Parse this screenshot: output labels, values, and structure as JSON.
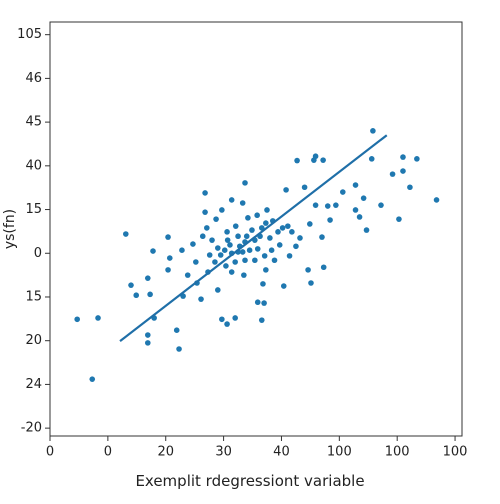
{
  "chart_data": {
    "type": "scatter",
    "x_label": "Exemplit rdegressiont variable",
    "y_label": "ys(fn)",
    "color": "#1f78b0",
    "line_color": "#1f6fa8",
    "xlim": [
      0,
      7.12
    ],
    "ylim": [
      -0.18,
      9.29
    ],
    "xticks": [
      {
        "value": 0,
        "label": "0"
      },
      {
        "value": 1,
        "label": "0"
      },
      {
        "value": 2,
        "label": "20"
      },
      {
        "value": 3,
        "label": "30"
      },
      {
        "value": 4,
        "label": "40"
      },
      {
        "value": 5,
        "label": "100"
      },
      {
        "value": 6,
        "label": "100"
      },
      {
        "value": 7,
        "label": "100"
      }
    ],
    "yticks": [
      {
        "value": 0,
        "label": "-20"
      },
      {
        "value": 1,
        "label": "24"
      },
      {
        "value": 2,
        "label": "20"
      },
      {
        "value": 3,
        "label": "15"
      },
      {
        "value": 4,
        "label": "0"
      },
      {
        "value": 5,
        "label": "15"
      },
      {
        "value": 6,
        "label": "40"
      },
      {
        "value": 7,
        "label": "45"
      },
      {
        "value": 8,
        "label": "46"
      },
      {
        "value": 9,
        "label": "105"
      }
    ],
    "x": [
      0.47,
      0.83,
      0.73,
      1.31,
      1.4,
      1.49,
      1.73,
      1.69,
      1.78,
      1.69,
      1.69,
      1.8,
      2.04,
      2.19,
      2.23,
      2.68,
      3.06,
      3.37,
      3.66,
      4.27,
      4.56,
      5.56,
      4.72,
      5.28,
      5.42,
      5.06,
      5.28,
      5.35,
      4.94,
      4.8,
      4.84,
      4.7,
      4.49,
      4.59,
      4.32,
      4.46,
      4.73,
      4.51,
      4.04,
      5.47,
      5.72,
      5.92,
      6.1,
      6.34,
      6.22,
      6.03,
      6.68,
      6.1,
      5.58,
      4.59,
      4.08,
      4.4,
      2.97,
      3.2,
      3.59,
      3.7,
      2.61,
      2.54,
      2.3,
      2.38,
      2.52,
      2.04,
      2.07,
      2.28,
      2.47,
      2.64,
      2.71,
      2.87,
      2.97,
      2.68,
      3.14,
      3.33,
      3.42,
      3.58,
      3.75,
      3.85,
      3.73,
      3.49,
      3.25,
      3.07,
      3.02,
      3.14,
      3.28,
      3.37,
      3.45,
      3.54,
      3.63,
      3.8,
      3.94,
      4.02,
      4.11,
      4.18,
      3.97,
      3.83,
      3.71,
      3.54,
      3.37,
      3.2,
      3.04,
      2.85,
      2.76,
      2.9,
      2.8,
      3.14,
      3.35,
      3.73,
      3.88,
      4.14,
      4.25,
      3.68,
      2.9,
      2.73,
      3.06,
      3.21,
      3.66,
      3.4,
      3.25,
      3.11,
      2.95,
      3.59,
      3.33
    ],
    "y": [
      2.49,
      2.52,
      1.12,
      4.44,
      3.27,
      3.04,
      3.06,
      3.43,
      4.05,
      2.13,
      1.95,
      2.52,
      4.37,
      2.24,
      1.81,
      5.38,
      2.38,
      5.61,
      2.47,
      6.12,
      6.13,
      6.16,
      6.13,
      5.56,
      5.26,
      5.4,
      4.99,
      4.83,
      5.1,
      5.08,
      4.76,
      4.37,
      4.67,
      5.1,
      4.35,
      3.62,
      3.68,
      3.32,
      3.25,
      4.53,
      5.1,
      5.81,
      5.88,
      6.16,
      5.51,
      4.78,
      5.22,
      6.2,
      6.8,
      6.22,
      5.45,
      5.51,
      2.49,
      2.52,
      2.88,
      2.86,
      2.95,
      3.32,
      3.02,
      3.5,
      3.8,
      3.62,
      3.89,
      4.07,
      4.21,
      4.39,
      4.58,
      4.78,
      4.99,
      4.94,
      5.22,
      5.15,
      4.81,
      4.87,
      4.99,
      4.74,
      4.69,
      4.53,
      4.39,
      4.3,
      4.07,
      4.0,
      4.16,
      4.26,
      4.07,
      4.3,
      4.39,
      4.35,
      4.49,
      4.58,
      4.62,
      4.49,
      4.19,
      4.07,
      3.94,
      3.84,
      3.84,
      3.8,
      3.71,
      3.8,
      3.96,
      4.12,
      4.3,
      3.57,
      3.5,
      3.62,
      3.84,
      3.94,
      4.16,
      3.3,
      3.16,
      3.57,
      4.49,
      4.62,
      4.58,
      4.39,
      4.03,
      4.19,
      3.96,
      4.1,
      4.03
    ],
    "fit_line": {
      "x": [
        1.21,
        5.82
      ],
      "y": [
        1.99,
        6.7
      ]
    }
  }
}
